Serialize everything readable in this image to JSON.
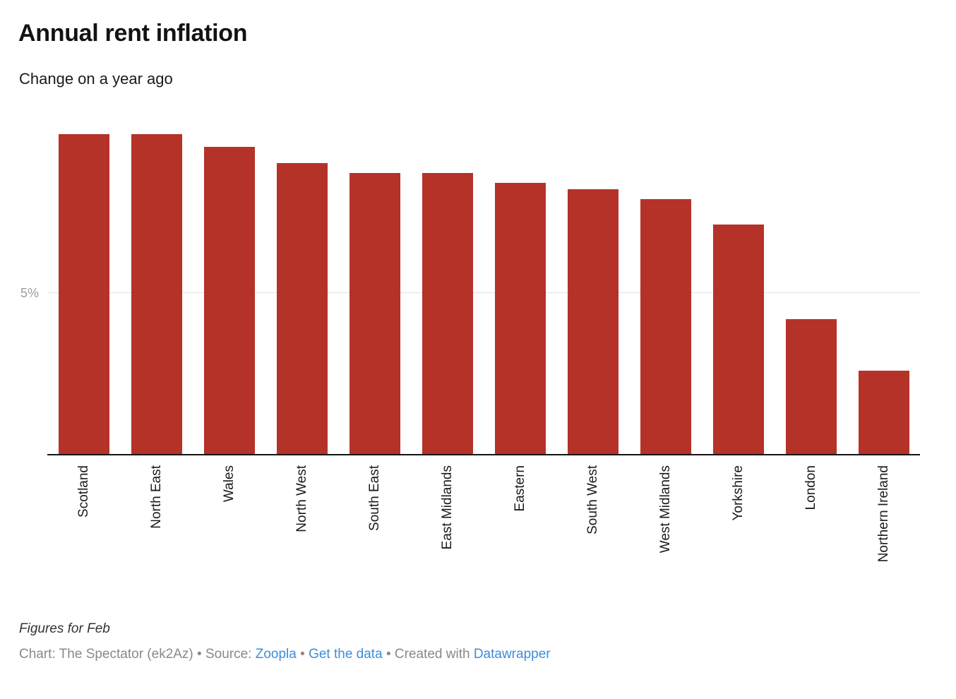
{
  "header": {
    "title": "Annual rent inflation",
    "subtitle": "Change on a year ago"
  },
  "chart_data": {
    "type": "bar",
    "title": "Annual rent inflation",
    "subtitle": "Change on a year ago",
    "categories": [
      "Scotland",
      "North East",
      "Wales",
      "North West",
      "South East",
      "East Midlands",
      "Eastern",
      "South West",
      "West Midlands",
      "Yorkshire",
      "London",
      "Northern Ireland"
    ],
    "values": [
      9.9,
      9.9,
      9.5,
      9.0,
      8.7,
      8.7,
      8.4,
      8.2,
      7.9,
      7.1,
      4.2,
      2.6
    ],
    "xlabel": "",
    "ylabel": "",
    "ylim": [
      0,
      11
    ],
    "ytick_values": [
      5
    ],
    "ytick_labels": [
      "5%"
    ],
    "grid": "single horizontal gridline at 5%, behind bars",
    "legend": "none",
    "bar_color": "#b53229",
    "unit": "%"
  },
  "footer": {
    "note": "Figures for Feb",
    "byline_prefix": "Chart: The Spectator (ek2Az)",
    "separator": "•",
    "source_label": "Source:",
    "source_link": "Zoopla",
    "data_link": "Get the data",
    "created_label": "Created with",
    "created_link": "Datawrapper"
  },
  "colors": {
    "bar": "#b53229",
    "axis_line": "#141414",
    "gridline": "#e3e3e3",
    "ytick_text": "#9d9d9d",
    "link_blue": "#3d8dd7",
    "byline_gray": "#898989",
    "background": "#ffffff"
  }
}
